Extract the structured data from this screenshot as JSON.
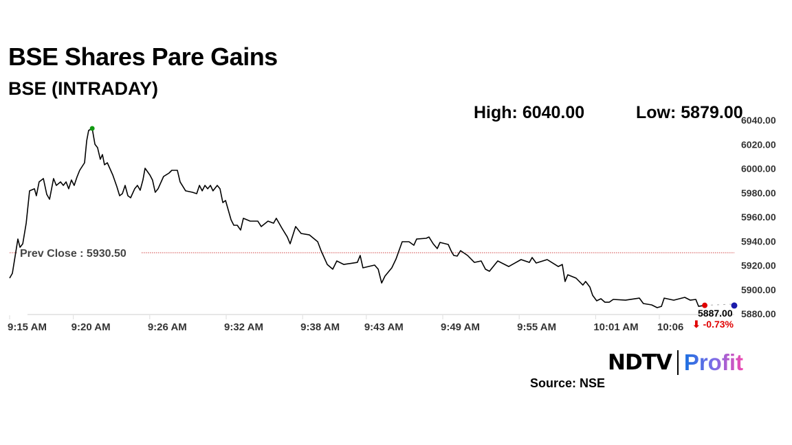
{
  "header": {
    "title": "BSE Shares Pare Gains",
    "subtitle": "BSE (INTRADAY)"
  },
  "stats": {
    "high_label": "High: 6040.00",
    "low_label": "Low: 5879.00"
  },
  "footer": {
    "source": "Source: NSE",
    "logo_ndtv": "NDTV",
    "logo_profit": "Profit"
  },
  "chart_data": {
    "type": "line",
    "title": "BSE (INTRADAY)",
    "xlabel": "",
    "ylabel": "",
    "ylim": [
      5880,
      6040
    ],
    "xlim": [
      "9:15:00",
      "10:11:53"
    ],
    "grid": false,
    "y_ticks": [
      "6040.00",
      "6020.00",
      "6000.00",
      "5980.00",
      "5960.00",
      "5940.00",
      "5920.00",
      "5900.00",
      "5880.00"
    ],
    "x_ticks": [
      "9:15 AM",
      "9:20 AM",
      "9:26 AM",
      "9:32 AM",
      "9:38 AM",
      "9:43 AM",
      "9:49 AM",
      "9:55 AM",
      "10:01 AM",
      "10:06"
    ],
    "reference_line": {
      "label": "Prev Close : 5930.50",
      "value": 5930.5,
      "color": "#d04040"
    },
    "last": {
      "value_label": "5887.00",
      "change_label": "⬇ -0.73%",
      "value": 5887.0,
      "time": "10:09:34",
      "color": "#e00000"
    },
    "end_marker": {
      "time": "10:11:53",
      "value": 5888.0,
      "color": "#1a1aaa"
    },
    "peak_marker": {
      "time": "9:21:29",
      "value": 6033.2,
      "color": "#119911"
    },
    "line_color": "#000000",
    "points": [
      [
        "9:15:00",
        5909.5
      ],
      [
        "9:15:13",
        5913.5
      ],
      [
        "9:15:39",
        5941.8
      ],
      [
        "9:15:49",
        5935.0
      ],
      [
        "9:16:02",
        5937.9
      ],
      [
        "9:16:18",
        5954.9
      ],
      [
        "9:16:34",
        5981.6
      ],
      [
        "9:16:57",
        5983.3
      ],
      [
        "9:17:06",
        5977.6
      ],
      [
        "9:17:19",
        5989.0
      ],
      [
        "9:17:39",
        5991.8
      ],
      [
        "9:17:55",
        5978.7
      ],
      [
        "9:18:08",
        5974.7
      ],
      [
        "9:18:27",
        5991.8
      ],
      [
        "9:18:40",
        5986.1
      ],
      [
        "9:19:00",
        5989.0
      ],
      [
        "9:19:13",
        5986.1
      ],
      [
        "9:19:26",
        5989.0
      ],
      [
        "9:19:38",
        5983.3
      ],
      [
        "9:19:51",
        5990.6
      ],
      [
        "9:20:04",
        5986.1
      ],
      [
        "9:20:17",
        5992.9
      ],
      [
        "9:20:30",
        5998.6
      ],
      [
        "9:20:53",
        6004.8
      ],
      [
        "9:21:03",
        6023.0
      ],
      [
        "9:21:12",
        6031.5
      ],
      [
        "9:21:29",
        6033.2
      ],
      [
        "9:21:42",
        6020.1
      ],
      [
        "9:21:54",
        6017.3
      ],
      [
        "9:22:07",
        6007.7
      ],
      [
        "9:22:17",
        6011.6
      ],
      [
        "9:22:27",
        6003.1
      ],
      [
        "9:22:40",
        6004.8
      ],
      [
        "9:23:06",
        5994.6
      ],
      [
        "9:23:25",
        5985.0
      ],
      [
        "9:23:38",
        5977.6
      ],
      [
        "9:23:51",
        5979.3
      ],
      [
        "9:24:04",
        5986.1
      ],
      [
        "9:24:17",
        5977.6
      ],
      [
        "9:24:30",
        5975.9
      ],
      [
        "9:24:49",
        5983.3
      ],
      [
        "9:25:02",
        5986.1
      ],
      [
        "9:25:15",
        5982.1
      ],
      [
        "9:25:28",
        5990.6
      ],
      [
        "9:25:38",
        6000.3
      ],
      [
        "9:26:01",
        5994.6
      ],
      [
        "9:26:13",
        5990.6
      ],
      [
        "9:26:26",
        5980.4
      ],
      [
        "9:26:39",
        5983.3
      ],
      [
        "9:27:05",
        5993.5
      ],
      [
        "9:27:31",
        5996.3
      ],
      [
        "9:27:44",
        5998.6
      ],
      [
        "9:28:10",
        5998.6
      ],
      [
        "9:28:23",
        5989.0
      ],
      [
        "9:28:49",
        5981.6
      ],
      [
        "9:29:21",
        5980.4
      ],
      [
        "9:29:41",
        5979.3
      ],
      [
        "9:29:54",
        5986.1
      ],
      [
        "9:30:07",
        5981.6
      ],
      [
        "9:30:20",
        5986.1
      ],
      [
        "9:30:33",
        5983.3
      ],
      [
        "9:30:46",
        5986.1
      ],
      [
        "9:30:58",
        5981.6
      ],
      [
        "9:31:18",
        5986.1
      ],
      [
        "9:31:31",
        5983.3
      ],
      [
        "9:31:44",
        5971.9
      ],
      [
        "9:31:57",
        5973.6
      ],
      [
        "9:32:23",
        5957.7
      ],
      [
        "9:32:36",
        5953.2
      ],
      [
        "9:32:52",
        5953.2
      ],
      [
        "9:33:08",
        5949.2
      ],
      [
        "9:33:21",
        5958.9
      ],
      [
        "9:33:53",
        5956.6
      ],
      [
        "9:34:29",
        5956.6
      ],
      [
        "9:34:45",
        5952.1
      ],
      [
        "9:35:17",
        5956.6
      ],
      [
        "9:35:43",
        5954.9
      ],
      [
        "9:35:56",
        5958.9
      ],
      [
        "9:36:22",
        5950.9
      ],
      [
        "9:36:48",
        5943.5
      ],
      [
        "9:37:01",
        5937.9
      ],
      [
        "9:37:27",
        5952.1
      ],
      [
        "9:37:53",
        5946.4
      ],
      [
        "9:38:32",
        5945.2
      ],
      [
        "9:39:11",
        5939.6
      ],
      [
        "9:39:27",
        5932.2
      ],
      [
        "9:39:56",
        5920.8
      ],
      [
        "9:40:22",
        5916.9
      ],
      [
        "9:40:41",
        5923.7
      ],
      [
        "9:41:14",
        5920.8
      ],
      [
        "9:42:18",
        5922.5
      ],
      [
        "9:42:31",
        5928.2
      ],
      [
        "9:42:44",
        5918.0
      ],
      [
        "9:43:39",
        5920.3
      ],
      [
        "9:43:56",
        5916.9
      ],
      [
        "9:44:12",
        5905.5
      ],
      [
        "9:44:28",
        5911.2
      ],
      [
        "9:45:00",
        5918.0
      ],
      [
        "9:45:20",
        5925.4
      ],
      [
        "9:45:49",
        5939.6
      ],
      [
        "9:46:21",
        5939.6
      ],
      [
        "9:46:44",
        5936.7
      ],
      [
        "9:46:57",
        5941.8
      ],
      [
        "9:47:42",
        5942.4
      ],
      [
        "9:47:55",
        5943.5
      ],
      [
        "9:48:15",
        5937.9
      ],
      [
        "9:48:34",
        5933.9
      ],
      [
        "9:48:47",
        5939.0
      ],
      [
        "9:49:26",
        5937.3
      ],
      [
        "9:49:39",
        5932.2
      ],
      [
        "9:49:52",
        5928.2
      ],
      [
        "9:50:08",
        5927.7
      ],
      [
        "9:50:24",
        5932.2
      ],
      [
        "9:50:57",
        5928.2
      ],
      [
        "9:51:29",
        5922.5
      ],
      [
        "9:52:01",
        5923.7
      ],
      [
        "9:52:21",
        5916.9
      ],
      [
        "9:52:40",
        5915.2
      ],
      [
        "9:53:19",
        5923.7
      ],
      [
        "9:54:11",
        5919.1
      ],
      [
        "9:55:09",
        5924.8
      ],
      [
        "9:55:48",
        5922.5
      ],
      [
        "9:56:01",
        5926.5
      ],
      [
        "9:56:20",
        5922.0
      ],
      [
        "9:57:12",
        5924.8
      ],
      [
        "9:58:04",
        5919.1
      ],
      [
        "9:58:23",
        5920.8
      ],
      [
        "9:58:36",
        5906.7
      ],
      [
        "9:58:49",
        5912.3
      ],
      [
        "9:59:28",
        5909.5
      ],
      [
        "10:00:00",
        5903.8
      ],
      [
        "10:00:13",
        5906.7
      ],
      [
        "10:00:33",
        5902.1
      ],
      [
        "10:00:46",
        5895.3
      ],
      [
        "10:01:05",
        5890.8
      ],
      [
        "10:01:25",
        5892.5
      ],
      [
        "10:01:44",
        5889.6
      ],
      [
        "10:02:04",
        5889.6
      ],
      [
        "10:02:23",
        5891.9
      ],
      [
        "10:03:21",
        5891.3
      ],
      [
        "10:04:26",
        5893.0
      ],
      [
        "10:04:45",
        5888.5
      ],
      [
        "10:05:24",
        5887.4
      ],
      [
        "10:05:50",
        5885.1
      ],
      [
        "10:06:10",
        5886.2
      ],
      [
        "10:06:23",
        5893.0
      ],
      [
        "10:07:08",
        5891.3
      ],
      [
        "10:08:00",
        5893.6
      ],
      [
        "10:08:26",
        5891.3
      ],
      [
        "10:08:52",
        5891.9
      ],
      [
        "10:09:05",
        5886.2
      ],
      [
        "10:09:34",
        5887.0
      ]
    ]
  }
}
